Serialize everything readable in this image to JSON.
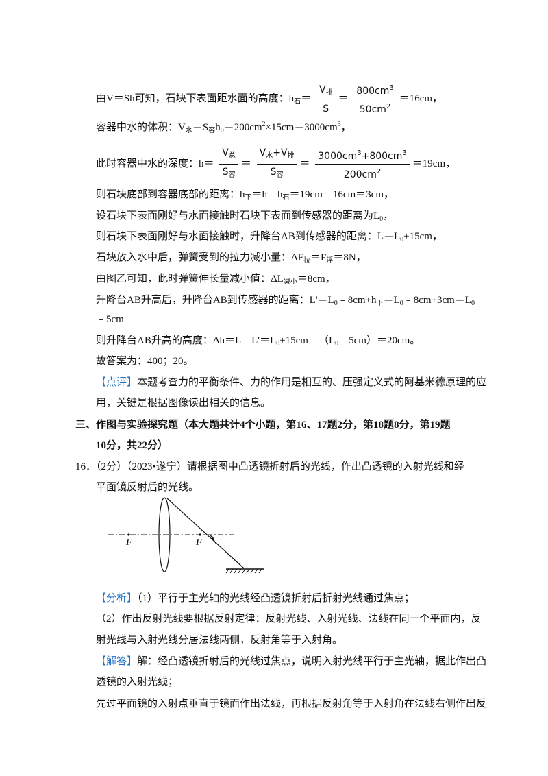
{
  "lines": [
    [
      "由V＝Sh可知，石块下表面距水面的高度：h",
      "石",
      "＝",
      "V",
      "排",
      "S",
      "＝",
      "800cm",
      "3",
      "50cm",
      "2",
      "＝16cm，"
    ],
    [
      "容器中水的体积：V",
      "水",
      "＝S",
      "容",
      "h",
      "0",
      "＝200cm",
      "2",
      "×15cm＝3000cm",
      "3",
      "，"
    ],
    [
      "此时容器中水的深度：h＝",
      "V",
      "总",
      "S",
      "容",
      "＝",
      "V",
      "水",
      "+V",
      "排",
      "S",
      "容",
      "＝",
      "3000cm",
      "3",
      "+800cm",
      "3",
      "200cm",
      "2",
      "＝19cm，"
    ],
    [
      "则石块底部到容器底部的距离：h",
      "下",
      "＝h﹣h",
      "石",
      "＝19cm﹣16cm＝3cm，"
    ],
    [
      "设石块下表面刚好与水面接触时石块下表面到传感器的距离为L",
      "0",
      "，"
    ],
    [
      "则石块下表面刚好与水面接触时，升降台AB到传感器的距离：L＝L",
      "0",
      "+15cm，"
    ],
    [
      "石块放入水中后，弹簧受到的拉力减小量：ΔF",
      "拉",
      "＝F",
      "浮",
      "＝8N，"
    ],
    [
      "由图乙可知，此时弹簧伸长量减小值：ΔL",
      "减小",
      "＝8cm，"
    ],
    [
      "升降台AB升高后，升降台AB到传感器的距离：L'＝L",
      "0",
      "﹣8cm+h",
      "下",
      "＝L",
      "0",
      "﹣8cm+3cm＝L",
      "0"
    ],
    [
      "﹣5cm"
    ],
    [
      "则升降台AB升高的高度：Δh＝L﹣L'＝L",
      "0",
      "+15cm﹣（L",
      "0",
      "﹣5cm）＝20cm。"
    ],
    [
      "故答案为：400；20。"
    ],
    [
      "【点评】",
      "本题考查力的平衡条件、力的作用是相互的、压强定义式的阿基米德原理的应"
    ],
    [
      "用，关键是根据图像读出相关的信息。"
    ],
    [
      "三、作图与实验探究题（本大题共计4个小题，第16、17题2分，第18题8分，第19题"
    ],
    [
      "10分，共22分）"
    ],
    [
      "16．（2分）（2023•遂宁）请根据图中凸透镜折射后的光线，作出凸透镜的入射光线和经"
    ],
    [
      "平面镜反射后的光线。"
    ],
    [
      "【分析】",
      "（1）平行于主光轴的光线经凸透镜折射后折射光线通过焦点；"
    ],
    [
      "（2）作出反射光线要根据反射定律：反射光线、入射光线、法线在同一个平面内，反"
    ],
    [
      "射光线与入射光线分居法线两侧，反射角等于入射角。"
    ],
    [
      "【解答】",
      "解：经凸透镜折射后的光线过焦点，说明入射光线平行于主光轴，据此作出凸"
    ],
    [
      "透镜的入射光线；"
    ],
    [
      "先过平面镜的入射点垂直于镜面作出法线，再根据反射角等于入射角在法线右侧作出反"
    ]
  ],
  "diagram": {
    "focus_left": "F",
    "focus_right": "F"
  }
}
